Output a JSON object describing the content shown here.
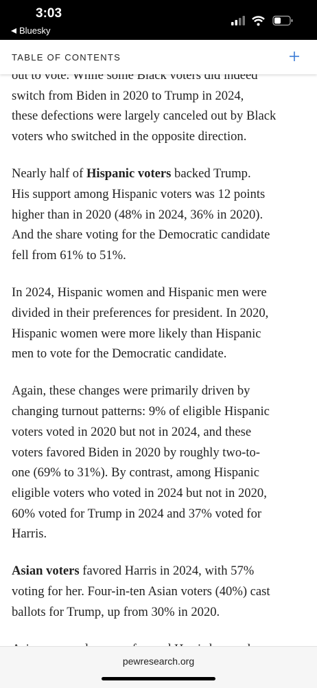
{
  "status": {
    "time": "3:03",
    "back": "Bluesky"
  },
  "header": {
    "title": "TABLE OF CONTENTS"
  },
  "paragraphs": [
    {
      "lines": [
        [
          {
            "text": "out to vote. While some Black voters did indeed"
          }
        ],
        [
          {
            "text": "switch from Biden in 2020 to Trump in 2024,"
          }
        ],
        [
          {
            "text": "these defections were largely canceled out by Black"
          }
        ],
        [
          {
            "text": "voters who switched in the opposite direction."
          }
        ]
      ]
    },
    {
      "lines": [
        [
          {
            "text": "Nearly half of "
          },
          {
            "text": "Hispanic voters",
            "bold": true
          },
          {
            "text": " backed Trump."
          }
        ],
        [
          {
            "text": "His support among Hispanic voters was 12 points"
          }
        ],
        [
          {
            "text": "higher than in 2020 (48% in 2024, 36% in 2020)."
          }
        ],
        [
          {
            "text": "And the share voting for the Democratic candidate"
          }
        ],
        [
          {
            "text": "fell from 61% to 51%."
          }
        ]
      ]
    },
    {
      "lines": [
        [
          {
            "text": "In 2024, Hispanic women and Hispanic men were"
          }
        ],
        [
          {
            "text": "divided in their preferences for president. In 2020,"
          }
        ],
        [
          {
            "text": "Hispanic women were more likely than Hispanic"
          }
        ],
        [
          {
            "text": "men to vote for the Democratic candidate."
          }
        ]
      ]
    },
    {
      "lines": [
        [
          {
            "text": "Again, these changes were primarily driven by"
          }
        ],
        [
          {
            "text": "changing turnout patterns: 9% of eligible Hispanic"
          }
        ],
        [
          {
            "text": "voters voted in 2020 but not in 2024, and these"
          }
        ],
        [
          {
            "text": "voters favored Biden in 2020 by roughly two-to-"
          }
        ],
        [
          {
            "text": "one (69% to 31%). By contrast, among Hispanic"
          }
        ],
        [
          {
            "text": "eligible voters who voted in 2024 but not in 2020,"
          }
        ],
        [
          {
            "text": "60% voted for Trump in 2024 and 37% voted for"
          }
        ],
        [
          {
            "text": "Harris."
          }
        ]
      ]
    },
    {
      "lines": [
        [
          {
            "text": "Asian voters",
            "bold": true
          },
          {
            "text": " favored Harris in 2024, with 57%"
          }
        ],
        [
          {
            "text": "voting for her. Four-in-ten Asian voters (40%) cast"
          }
        ],
        [
          {
            "text": "ballots for Trump, up from 30% in 2020."
          }
        ]
      ]
    },
    {
      "lines": [
        [
          {
            "text": "Asian men and women favored Harris by nearly"
          }
        ]
      ]
    }
  ],
  "footer": {
    "site": "pewresearch.org"
  }
}
